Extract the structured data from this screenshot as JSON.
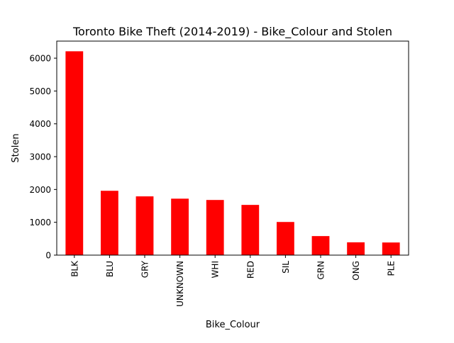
{
  "chart_data": {
    "type": "bar",
    "title": "Toronto Bike Theft (2014-2019) - Bike_Colour and Stolen",
    "xlabel": "Bike_Colour",
    "ylabel": "Stolen",
    "categories": [
      "BLK",
      "BLU",
      "GRY",
      "UNKNOWN",
      "WHI",
      "RED",
      "SIL",
      "GRN",
      "ONG",
      "PLE"
    ],
    "values": [
      6210,
      1960,
      1790,
      1720,
      1680,
      1530,
      1010,
      580,
      390,
      385
    ],
    "ylim": [
      0,
      6520
    ],
    "yticks": [
      0,
      1000,
      2000,
      3000,
      4000,
      5000,
      6000
    ],
    "bar_color": "#ff0000",
    "grid": false,
    "legend": "none"
  }
}
